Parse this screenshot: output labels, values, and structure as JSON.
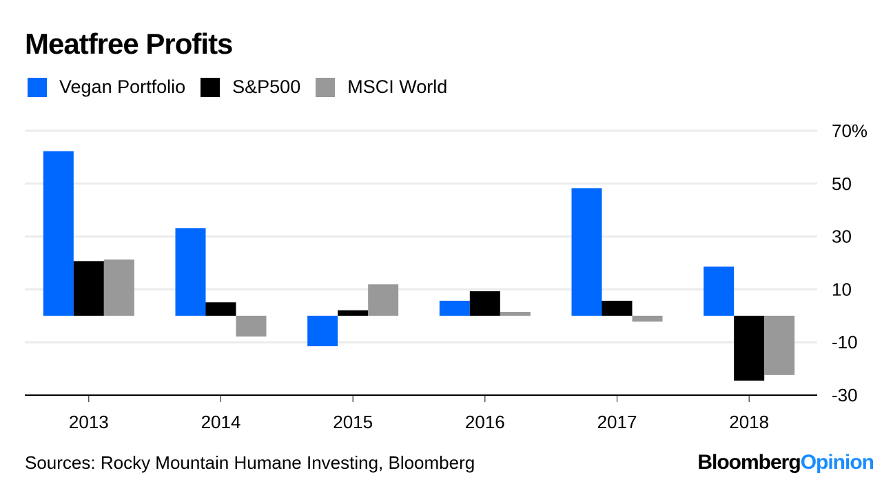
{
  "chart_data": {
    "type": "bar",
    "title": "Meatfree Profits",
    "xlabel": "",
    "ylabel": "",
    "categories": [
      "2013",
      "2014",
      "2015",
      "2016",
      "2017",
      "2018"
    ],
    "series": [
      {
        "name": "Vegan Portfolio",
        "color": "#0068ff",
        "values": [
          62.3,
          33.2,
          -11.5,
          5.7,
          48.3,
          18.6
        ]
      },
      {
        "name": "S&P500",
        "color": "#000000",
        "values": [
          20.7,
          5.1,
          2.1,
          9.3,
          5.7,
          -24.5
        ]
      },
      {
        "name": "MSCI World",
        "color": "#999999",
        "values": [
          21.3,
          -7.8,
          11.9,
          1.5,
          -2.2,
          -22.4
        ]
      }
    ],
    "ylim": [
      -30,
      70
    ],
    "yticks": [
      70,
      50,
      30,
      10,
      -10,
      -30
    ],
    "ytick_labels": [
      "70%",
      "50",
      "30",
      "10",
      "-10",
      "-30"
    ],
    "grid": true,
    "legend": "top-left",
    "y_axis_side": "right"
  },
  "footer": {
    "sources": "Sources: Rocky Mountain Humane Investing, Bloomberg",
    "brand_part1": "Bloomberg",
    "brand_part2": "Opinion"
  }
}
